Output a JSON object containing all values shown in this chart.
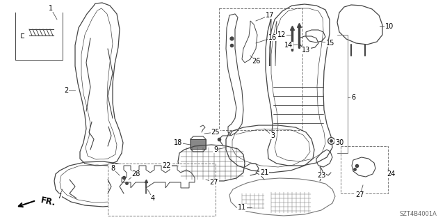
{
  "bg_color": "#ffffff",
  "code": "SZT4B4001A",
  "lw_main": 0.9,
  "lw_inner": 0.5,
  "lw_label_line": 0.6,
  "gray": "#444444",
  "lgray": "#777777"
}
